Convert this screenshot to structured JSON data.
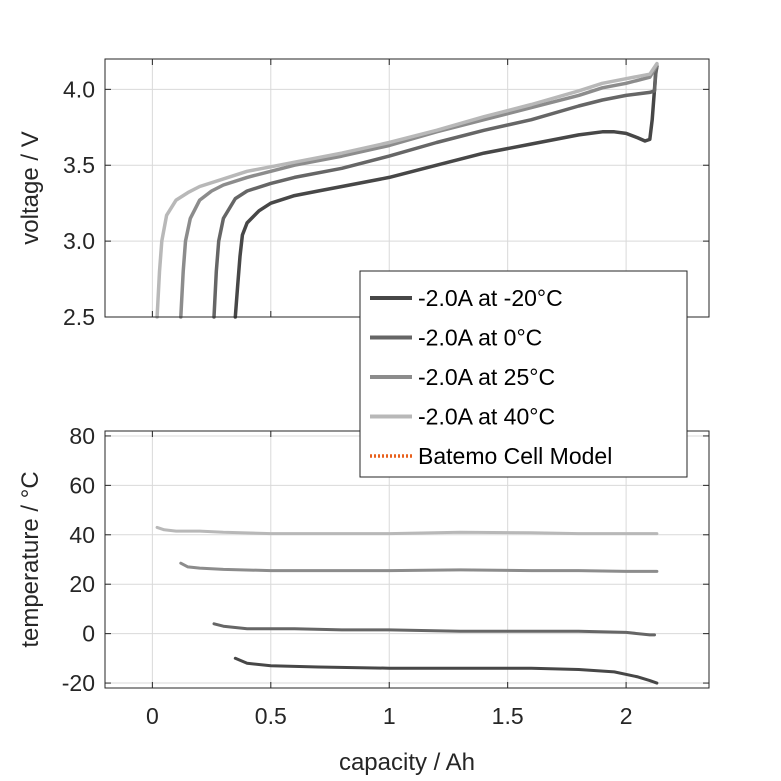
{
  "chart_data": [
    {
      "type": "line",
      "xlabel": "",
      "ylabel": "voltage / V",
      "xlim": [
        -0.2,
        2.35
      ],
      "ylim": [
        2.5,
        4.2
      ],
      "xticks": [
        0,
        0.5,
        1,
        1.5,
        2
      ],
      "yticks": [
        2.5,
        3.0,
        3.5,
        4.0
      ],
      "ytick_labels": [
        "2.5",
        "3.0",
        "3.5",
        "4.0"
      ],
      "show_xtick_labels": false,
      "grid": true,
      "series": [
        {
          "name": "-2.0A at -20°C",
          "color": "#474747",
          "x": [
            0.35,
            0.36,
            0.37,
            0.38,
            0.4,
            0.45,
            0.5,
            0.6,
            0.7,
            0.8,
            1.0,
            1.2,
            1.4,
            1.6,
            1.8,
            1.9,
            1.95,
            2.0,
            2.05,
            2.08,
            2.1,
            2.11,
            2.12,
            2.125,
            2.13
          ],
          "y": [
            2.5,
            2.7,
            2.9,
            3.04,
            3.12,
            3.2,
            3.25,
            3.3,
            3.33,
            3.36,
            3.42,
            3.5,
            3.58,
            3.64,
            3.7,
            3.72,
            3.72,
            3.71,
            3.68,
            3.66,
            3.67,
            3.8,
            4.0,
            4.12,
            4.15
          ]
        },
        {
          "name": "-2.0A at 0°C",
          "color": "#666666",
          "x": [
            0.26,
            0.27,
            0.28,
            0.3,
            0.35,
            0.4,
            0.5,
            0.6,
            0.8,
            1.0,
            1.2,
            1.4,
            1.6,
            1.8,
            1.9,
            2.0,
            2.05,
            2.1,
            2.12,
            2.125,
            2.13
          ],
          "y": [
            2.5,
            2.8,
            3.0,
            3.15,
            3.28,
            3.33,
            3.38,
            3.42,
            3.48,
            3.56,
            3.65,
            3.73,
            3.8,
            3.89,
            3.93,
            3.96,
            3.97,
            3.98,
            3.99,
            4.1,
            4.15
          ]
        },
        {
          "name": "-2.0A at 25°C",
          "color": "#8c8c8c",
          "x": [
            0.12,
            0.13,
            0.14,
            0.16,
            0.2,
            0.25,
            0.3,
            0.4,
            0.5,
            0.6,
            0.8,
            1.0,
            1.2,
            1.4,
            1.6,
            1.8,
            1.9,
            2.0,
            2.1,
            2.13
          ],
          "y": [
            2.5,
            2.8,
            3.0,
            3.15,
            3.27,
            3.33,
            3.37,
            3.42,
            3.46,
            3.5,
            3.56,
            3.63,
            3.72,
            3.8,
            3.88,
            3.96,
            4.01,
            4.04,
            4.08,
            4.16
          ]
        },
        {
          "name": "-2.0A at 40°C",
          "color": "#b8b8b8",
          "x": [
            0.02,
            0.03,
            0.04,
            0.06,
            0.1,
            0.15,
            0.2,
            0.3,
            0.4,
            0.5,
            0.6,
            0.8,
            1.0,
            1.2,
            1.4,
            1.6,
            1.8,
            1.9,
            2.0,
            2.1,
            2.13
          ],
          "y": [
            2.5,
            2.8,
            3.0,
            3.17,
            3.27,
            3.32,
            3.36,
            3.41,
            3.46,
            3.49,
            3.52,
            3.58,
            3.65,
            3.73,
            3.82,
            3.9,
            3.99,
            4.04,
            4.07,
            4.1,
            4.17
          ]
        }
      ]
    },
    {
      "type": "line",
      "xlabel": "capacity / Ah",
      "ylabel": "temperature / °C",
      "xlim": [
        -0.2,
        2.35
      ],
      "ylim": [
        -22,
        82
      ],
      "xticks": [
        0,
        0.5,
        1,
        1.5,
        2
      ],
      "xtick_labels": [
        "0",
        "0.5",
        "1",
        "1.5",
        "2"
      ],
      "yticks": [
        -20,
        0,
        20,
        40,
        60,
        80
      ],
      "ytick_labels": [
        "-20",
        "0",
        "20",
        "40",
        "60",
        "80"
      ],
      "grid": true,
      "series": [
        {
          "name": "-2.0A at -20°C",
          "color": "#474747",
          "x": [
            0.35,
            0.4,
            0.5,
            0.7,
            1.0,
            1.3,
            1.6,
            1.8,
            1.95,
            2.05,
            2.1,
            2.13
          ],
          "y": [
            -10.0,
            -12.0,
            -13.0,
            -13.5,
            -14.0,
            -14.0,
            -14.0,
            -14.5,
            -15.5,
            -17.5,
            -19.0,
            -20.0
          ]
        },
        {
          "name": "-2.0A at 0°C",
          "color": "#666666",
          "x": [
            0.26,
            0.3,
            0.4,
            0.6,
            0.8,
            1.0,
            1.3,
            1.6,
            1.8,
            2.0,
            2.1,
            2.12
          ],
          "y": [
            4.0,
            3.0,
            2.0,
            2.0,
            1.5,
            1.5,
            1.0,
            1.0,
            1.0,
            0.5,
            -0.5,
            -0.5
          ]
        },
        {
          "name": "-2.0A at 25°C",
          "color": "#8c8c8c",
          "x": [
            0.12,
            0.15,
            0.2,
            0.3,
            0.5,
            0.7,
            1.0,
            1.3,
            1.6,
            1.8,
            2.0,
            2.13
          ],
          "y": [
            28.5,
            27.0,
            26.5,
            26.0,
            25.5,
            25.5,
            25.5,
            25.8,
            25.5,
            25.5,
            25.2,
            25.2
          ]
        },
        {
          "name": "-2.0A at 40°C",
          "color": "#b8b8b8",
          "x": [
            0.02,
            0.05,
            0.1,
            0.2,
            0.3,
            0.5,
            0.7,
            1.0,
            1.3,
            1.6,
            1.8,
            2.0,
            2.13
          ],
          "y": [
            43.0,
            42.0,
            41.5,
            41.5,
            41.0,
            40.5,
            40.5,
            40.5,
            41.0,
            40.8,
            40.5,
            40.5,
            40.5
          ]
        }
      ]
    }
  ],
  "legend": {
    "placement": "center-right",
    "entries": [
      {
        "label": "-2.0A at -20°C",
        "color": "#474747",
        "style": "solid"
      },
      {
        "label": "-2.0A at 0°C",
        "color": "#666666",
        "style": "solid"
      },
      {
        "label": "-2.0A at 25°C",
        "color": "#8c8c8c",
        "style": "solid"
      },
      {
        "label": "-2.0A at 40°C",
        "color": "#b8b8b8",
        "style": "solid"
      },
      {
        "label": "Batemo Cell Model",
        "color": "#e8601c",
        "style": "dotted"
      }
    ]
  }
}
